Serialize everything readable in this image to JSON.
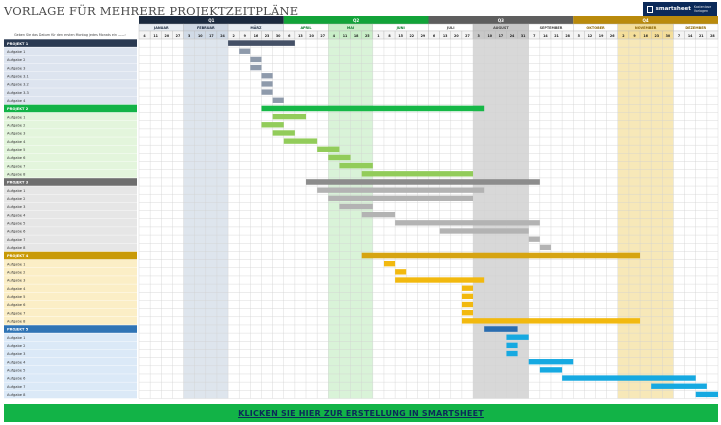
{
  "title": "VORLAGE FÜR MEHRERE PROJEKTZEITPLÄNE",
  "logo": {
    "icon": "smartsheet-logo-icon",
    "name": "smartsheet",
    "tagline": "Kostenlose Vorlagen"
  },
  "note": "Geben Sie das Datum für den ersten Montag jedes Monats ein ——›",
  "cta_label": "KLICKEN SIE HIER ZUR ERSTELLUNG IN SMARTSHEET",
  "colors": {
    "q1": "#1b2a3f",
    "q2": "#12a339",
    "q3": "#5e5e5e",
    "q4": "#b98a0c",
    "m1": "#d0dae6",
    "m2": "#c9eec8",
    "m3": "#c8c8c8",
    "m4": "#f4de9a",
    "grid": "#d2d2d2"
  },
  "quarters": [
    {
      "label": "Q1",
      "months": [
        0,
        1,
        2
      ]
    },
    {
      "label": "Q2",
      "months": [
        3,
        4,
        5
      ]
    },
    {
      "label": "Q3",
      "months": [
        6,
        7,
        8
      ]
    },
    {
      "label": "Q4",
      "months": [
        9,
        10,
        11
      ]
    }
  ],
  "months": [
    {
      "label": "JANUAR",
      "days": [
        "4",
        "11",
        "20",
        "27"
      ]
    },
    {
      "label": "FEBRUAR",
      "days": [
        "3",
        "10",
        "17",
        "24"
      ]
    },
    {
      "label": "MÄRZ",
      "days": [
        "2",
        "9",
        "16",
        "23",
        "30"
      ]
    },
    {
      "label": "APRIL",
      "days": [
        "6",
        "13",
        "20",
        "27"
      ]
    },
    {
      "label": "MAI",
      "days": [
        "4",
        "11",
        "18",
        "25"
      ]
    },
    {
      "label": "JUNI",
      "days": [
        "1",
        "8",
        "15",
        "22",
        "29"
      ]
    },
    {
      "label": "JULI",
      "days": [
        "6",
        "13",
        "20",
        "27"
      ]
    },
    {
      "label": "AUGUST",
      "days": [
        "3",
        "10",
        "17",
        "24",
        "31"
      ]
    },
    {
      "label": "SEPTEMBER",
      "days": [
        "7",
        "14",
        "21",
        "28"
      ]
    },
    {
      "label": "OKTOBER",
      "days": [
        "5",
        "12",
        "19",
        "26"
      ]
    },
    {
      "label": "NOVEMBER",
      "days": [
        "2",
        "9",
        "16",
        "23",
        "30"
      ]
    },
    {
      "label": "DEZEMBER",
      "days": [
        "7",
        "14",
        "21",
        "28"
      ]
    }
  ],
  "shaded_months": [
    1,
    4,
    7,
    10
  ],
  "projects": [
    {
      "name": "PROJEKT 1",
      "header_bg": "#2a3a52",
      "label_bg": "#dde4ef",
      "bar_color": "#445066",
      "task_color": "#8e9aab",
      "span": [
        8,
        14
      ],
      "tasks": [
        {
          "name": "Aufgabe 1",
          "span": [
            9,
            10
          ]
        },
        {
          "name": "Aufgabe 2",
          "span": [
            10,
            11
          ]
        },
        {
          "name": "Aufgabe 3",
          "span": [
            10,
            11
          ]
        },
        {
          "name": "Aufgabe 3.1",
          "span": [
            11,
            12
          ]
        },
        {
          "name": "Aufgabe 3.2",
          "span": [
            11,
            12
          ]
        },
        {
          "name": "Aufgabe 3.3",
          "span": [
            11,
            12
          ]
        },
        {
          "name": "Aufgabe 4",
          "span": [
            12,
            13
          ]
        }
      ]
    },
    {
      "name": "PROJEKT 2",
      "header_bg": "#12b347",
      "label_bg": "#e3f5dc",
      "bar_color": "#16b847",
      "task_color": "#92cc5a",
      "span": [
        11,
        31
      ],
      "tasks": [
        {
          "name": "Aufgabe 1",
          "span": [
            12,
            15
          ]
        },
        {
          "name": "Aufgabe 2",
          "span": [
            11,
            13
          ]
        },
        {
          "name": "Aufgabe 3",
          "span": [
            12,
            14
          ]
        },
        {
          "name": "Aufgabe 4",
          "span": [
            13,
            16
          ]
        },
        {
          "name": "Aufgabe 5",
          "span": [
            16,
            18
          ]
        },
        {
          "name": "Aufgabe 6",
          "span": [
            17,
            19
          ]
        },
        {
          "name": "Aufgabe 7",
          "span": [
            18,
            21
          ]
        },
        {
          "name": "Aufgabe 8",
          "span": [
            20,
            30
          ]
        }
      ]
    },
    {
      "name": "PROJEKT 3",
      "header_bg": "#6e6e6e",
      "label_bg": "#e6e6e6",
      "bar_color": "#8c8c8c",
      "task_color": "#b3b3b3",
      "span": [
        15,
        36
      ],
      "tasks": [
        {
          "name": "Aufgabe 1",
          "span": [
            16,
            31
          ]
        },
        {
          "name": "Aufgabe 2",
          "span": [
            17,
            30
          ]
        },
        {
          "name": "Aufgabe 3",
          "span": [
            18,
            21
          ]
        },
        {
          "name": "Aufgabe 4",
          "span": [
            20,
            23
          ]
        },
        {
          "name": "Aufgabe 5",
          "span": [
            23,
            36
          ]
        },
        {
          "name": "Aufgabe 6",
          "span": [
            27,
            35
          ]
        },
        {
          "name": "Aufgabe 7",
          "span": [
            35,
            36
          ]
        },
        {
          "name": "Aufgabe 8",
          "span": [
            36,
            37
          ]
        }
      ]
    },
    {
      "name": "PROJEKT 4",
      "header_bg": "#c99a06",
      "label_bg": "#fbeec6",
      "bar_color": "#d6a411",
      "task_color": "#f2b90f",
      "span": [
        20,
        45
      ],
      "tasks": [
        {
          "name": "Aufgabe 1",
          "span": [
            22,
            23
          ]
        },
        {
          "name": "Aufgabe 2",
          "span": [
            23,
            24
          ]
        },
        {
          "name": "Aufgabe 3",
          "span": [
            23,
            31
          ]
        },
        {
          "name": "Aufgabe 4",
          "span": [
            29,
            30
          ]
        },
        {
          "name": "Aufgabe 5",
          "span": [
            29,
            30
          ]
        },
        {
          "name": "Aufgabe 6",
          "span": [
            29,
            30
          ]
        },
        {
          "name": "Aufgabe 7",
          "span": [
            29,
            30
          ]
        },
        {
          "name": "Aufgabe 8",
          "span": [
            29,
            45
          ]
        }
      ]
    },
    {
      "name": "PROJEKT 5",
      "header_bg": "#2f74b5",
      "label_bg": "#dbe9f7",
      "bar_color": "#2a6db0",
      "task_color": "#16a9e1",
      "span": [
        31,
        34
      ],
      "tasks": [
        {
          "name": "Aufgabe 1",
          "span": [
            33,
            35
          ]
        },
        {
          "name": "Aufgabe 2",
          "span": [
            33,
            34
          ]
        },
        {
          "name": "Aufgabe 3",
          "span": [
            33,
            34
          ]
        },
        {
          "name": "Aufgabe 4",
          "span": [
            35,
            39
          ]
        },
        {
          "name": "Aufgabe 5",
          "span": [
            36,
            38
          ]
        },
        {
          "name": "Aufgabe 6",
          "span": [
            38,
            50
          ]
        },
        {
          "name": "Aufgabe 7",
          "span": [
            46,
            51
          ]
        },
        {
          "name": "Aufgabe 8",
          "span": [
            50,
            52
          ]
        }
      ]
    }
  ]
}
